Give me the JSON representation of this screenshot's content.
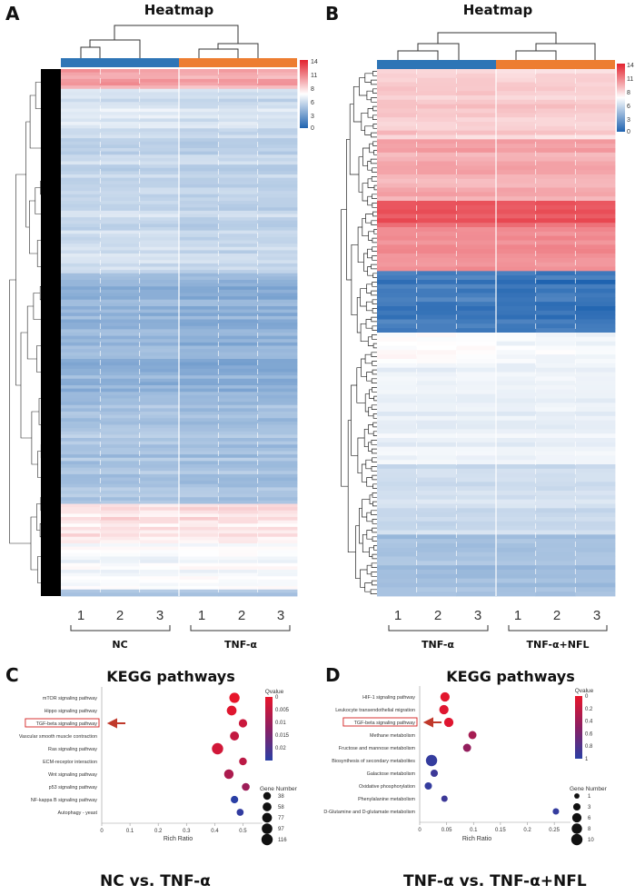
{
  "chart_data": [
    {
      "panel": "A",
      "type": "heatmap",
      "title": "Heatmap",
      "group_colors": {
        "first": "#2e75b6",
        "second": "#ed7d31"
      },
      "columns": [
        "1",
        "2",
        "3",
        "1",
        "2",
        "3"
      ],
      "groups": [
        "NC",
        "TNF-α"
      ],
      "color_scale": {
        "min": 0,
        "max": 14,
        "ticks": [
          "14",
          "11",
          "8",
          "6",
          "3",
          "0"
        ],
        "low": "#1f63b0",
        "mid": "#ffffff",
        "high": "#e3222e"
      },
      "row_pattern": "mostly low-expression (blue) genes; top band and lower band near white/red"
    },
    {
      "panel": "B",
      "type": "heatmap",
      "title": "Heatmap",
      "group_colors": {
        "first": "#2e75b6",
        "second": "#ed7d31"
      },
      "columns": [
        "1",
        "2",
        "3",
        "1",
        "2",
        "3"
      ],
      "groups": [
        "TNF-α",
        "TNF-α+NFL"
      ],
      "color_scale": {
        "min": 0,
        "max": 14,
        "ticks": [
          "14",
          "11",
          "8",
          "6",
          "3",
          "0"
        ],
        "low": "#1f63b0",
        "mid": "#ffffff",
        "high": "#e3222e"
      },
      "row_pattern": "top half red (high), middle band deep blue, lower half white to light blue"
    },
    {
      "panel": "C",
      "type": "scatter",
      "title": "KEGG pathways",
      "subtitle": "NC vs. TNF-α",
      "xlabel": "Rich Ratio",
      "xlim": [
        0,
        0.55
      ],
      "xticks": [
        0,
        0.1,
        0.2,
        0.3,
        0.4,
        0.5
      ],
      "xtick_labels": [
        "0",
        "0.1",
        "0.2",
        "0.3",
        "0.4",
        "0.5"
      ],
      "categories": [
        "mTOR signaling pathway",
        "Hippo signaling pathway",
        "TGF-beta signaling pathway",
        "Vascular smooth muscle contraction",
        "Ras signaling pathway",
        "ECM-receptor interaction",
        "Wnt signaling pathway",
        "p53 signaling pathway",
        "NF-kappa B signaling pathway",
        "Autophagy - yeast"
      ],
      "x": [
        0.47,
        0.46,
        0.5,
        0.47,
        0.41,
        0.5,
        0.45,
        0.51,
        0.47,
        0.49
      ],
      "gene_number": [
        90,
        78,
        50,
        62,
        116,
        38,
        72,
        40,
        34,
        28
      ],
      "qvalue": [
        0.0001,
        0.0012,
        0.004,
        0.005,
        0.003,
        0.006,
        0.008,
        0.01,
        0.025,
        0.024
      ],
      "highlight": "TGF-beta signaling pathway",
      "color_legend": {
        "title": "Qvalue",
        "min": 0,
        "max": 0.025,
        "ticks": [
          0,
          0.005,
          0.01,
          0.015,
          0.02
        ],
        "tick_labels": [
          "0",
          "0.005",
          "0.01",
          "0.015",
          "0.02"
        ]
      },
      "size_legend": {
        "title": "Gene Number",
        "values": [
          38,
          58,
          77,
          97,
          116
        ],
        "labels": [
          "38",
          "58",
          "77",
          "97",
          "116"
        ]
      }
    },
    {
      "panel": "D",
      "type": "scatter",
      "title": "KEGG pathways",
      "subtitle": "TNF-α vs. TNF-α+NFL",
      "xlabel": "Rich Ratio",
      "xlim": [
        0,
        0.27
      ],
      "xticks": [
        0,
        0.05,
        0.1,
        0.15,
        0.2,
        0.25
      ],
      "xtick_labels": [
        "0",
        "0.05",
        "0.1",
        "0.15",
        "0.2",
        "0.25"
      ],
      "categories": [
        "HIF-1 signaling pathway",
        "Leukocyte transendothelial migration",
        "TGF-beta signaling pathway",
        "Methane metabolism",
        "Fructose and mannose metabolism",
        "Biosynthesis of secondary metabolites",
        "Galactose metabolism",
        "Oxidative phosphorylation",
        "Phenylalanine metabolism",
        "D-Glutamine and D-glutamate metabolism"
      ],
      "x": [
        0.047,
        0.045,
        0.054,
        0.098,
        0.088,
        0.022,
        0.027,
        0.016,
        0.046,
        0.253
      ],
      "gene_number": [
        6,
        6,
        6,
        4,
        4,
        10,
        3,
        3,
        2,
        2
      ],
      "qvalue": [
        0.03,
        0.05,
        0.05,
        0.35,
        0.45,
        0.95,
        0.9,
        0.95,
        0.9,
        0.95
      ],
      "highlight": "TGF-beta signaling pathway",
      "color_legend": {
        "title": "Qvalue",
        "min": 0,
        "max": 1,
        "ticks": [
          0,
          0.2,
          0.4,
          0.6,
          0.8,
          1
        ],
        "tick_labels": [
          "0",
          "0.2",
          "0.4",
          "0.6",
          "0.8",
          "1"
        ]
      },
      "size_legend": {
        "title": "Gene Number",
        "values": [
          1,
          3,
          6,
          8,
          10
        ],
        "labels": [
          "1",
          "3",
          "6",
          "8",
          "10"
        ]
      }
    }
  ]
}
